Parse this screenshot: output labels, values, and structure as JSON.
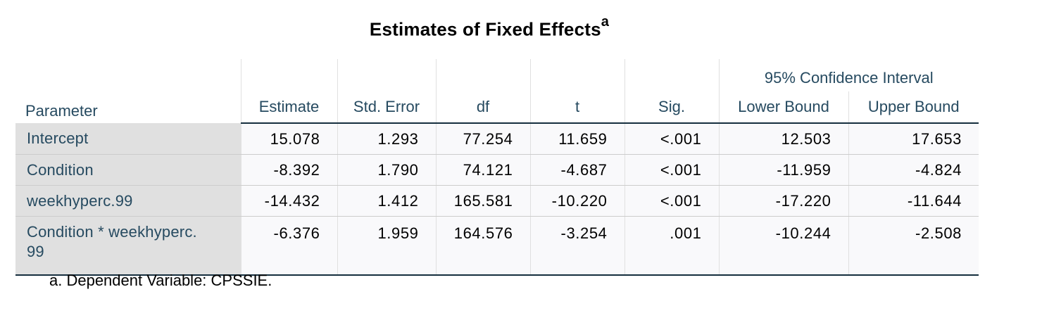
{
  "title": "Estimates of Fixed Effects",
  "title_superscript": "a",
  "headers": {
    "parameter": "Parameter",
    "estimate": "Estimate",
    "std_error": "Std. Error",
    "df": "df",
    "t": "t",
    "sig": "Sig.",
    "ci_group": "95% Confidence Interval",
    "lower_bound": "Lower Bound",
    "upper_bound": "Upper Bound"
  },
  "rows": [
    {
      "parameter": "Intercept",
      "estimate": "15.078",
      "std_error": "1.293",
      "df": "77.254",
      "t": "11.659",
      "sig": "<.001",
      "lower": "12.503",
      "upper": "17.653"
    },
    {
      "parameter": "Condition",
      "estimate": "-8.392",
      "std_error": "1.790",
      "df": "74.121",
      "t": "-4.687",
      "sig": "<.001",
      "lower": "-11.959",
      "upper": "-4.824"
    },
    {
      "parameter": "weekhyperc.99",
      "estimate": "-14.432",
      "std_error": "1.412",
      "df": "165.581",
      "t": "-10.220",
      "sig": "<.001",
      "lower": "-17.220",
      "upper": "-11.644"
    },
    {
      "parameter": "Condition * weekhyperc.",
      "parameter_wrap": "99",
      "estimate": "-6.376",
      "std_error": "1.959",
      "df": "164.576",
      "t": "-3.254",
      "sig": ".001",
      "lower": "-10.244",
      "upper": "-2.508"
    }
  ],
  "footnote": "a. Dependent Variable: CPSSIE.",
  "colors": {
    "header_text": "#264a60",
    "row_header_bg": "#e0e0e0",
    "cell_bg": "#f9f9fb",
    "rule": "#152e3e"
  }
}
